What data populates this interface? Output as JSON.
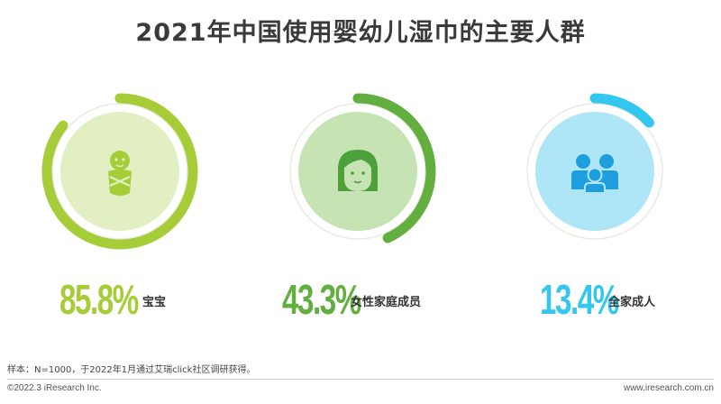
{
  "title": "2021年中国使用婴幼儿湿巾的主要人群",
  "note": "样本：N=1000，于2022年1月通过艾瑞click社区调研获得。",
  "footer": {
    "copyright": "©2022.3 iResearch Inc.",
    "website": "www.iresearch.com.cn"
  },
  "chart_data": {
    "type": "pie",
    "title": "2021年中国使用婴幼儿湿巾的主要人群",
    "unit": "%",
    "categories": [
      "宝宝",
      "女性家庭成员",
      "全家成人"
    ],
    "values": [
      85.8,
      43.3,
      13.4
    ],
    "value_labels": [
      "85.8%",
      "43.3%",
      "13.4%"
    ],
    "icons": [
      "baby-icon",
      "woman-face-icon",
      "family-group-icon"
    ],
    "colors": {
      "ring": [
        "#a6cd37",
        "#62ae3f",
        "#33c6ee"
      ],
      "disc": [
        "#e2efc2",
        "#c5e3b3",
        "#aee6f8"
      ],
      "icon": [
        "#a6cd37",
        "#4ea13a",
        "#1e9ddf"
      ],
      "track": "#e9ebe2"
    }
  }
}
